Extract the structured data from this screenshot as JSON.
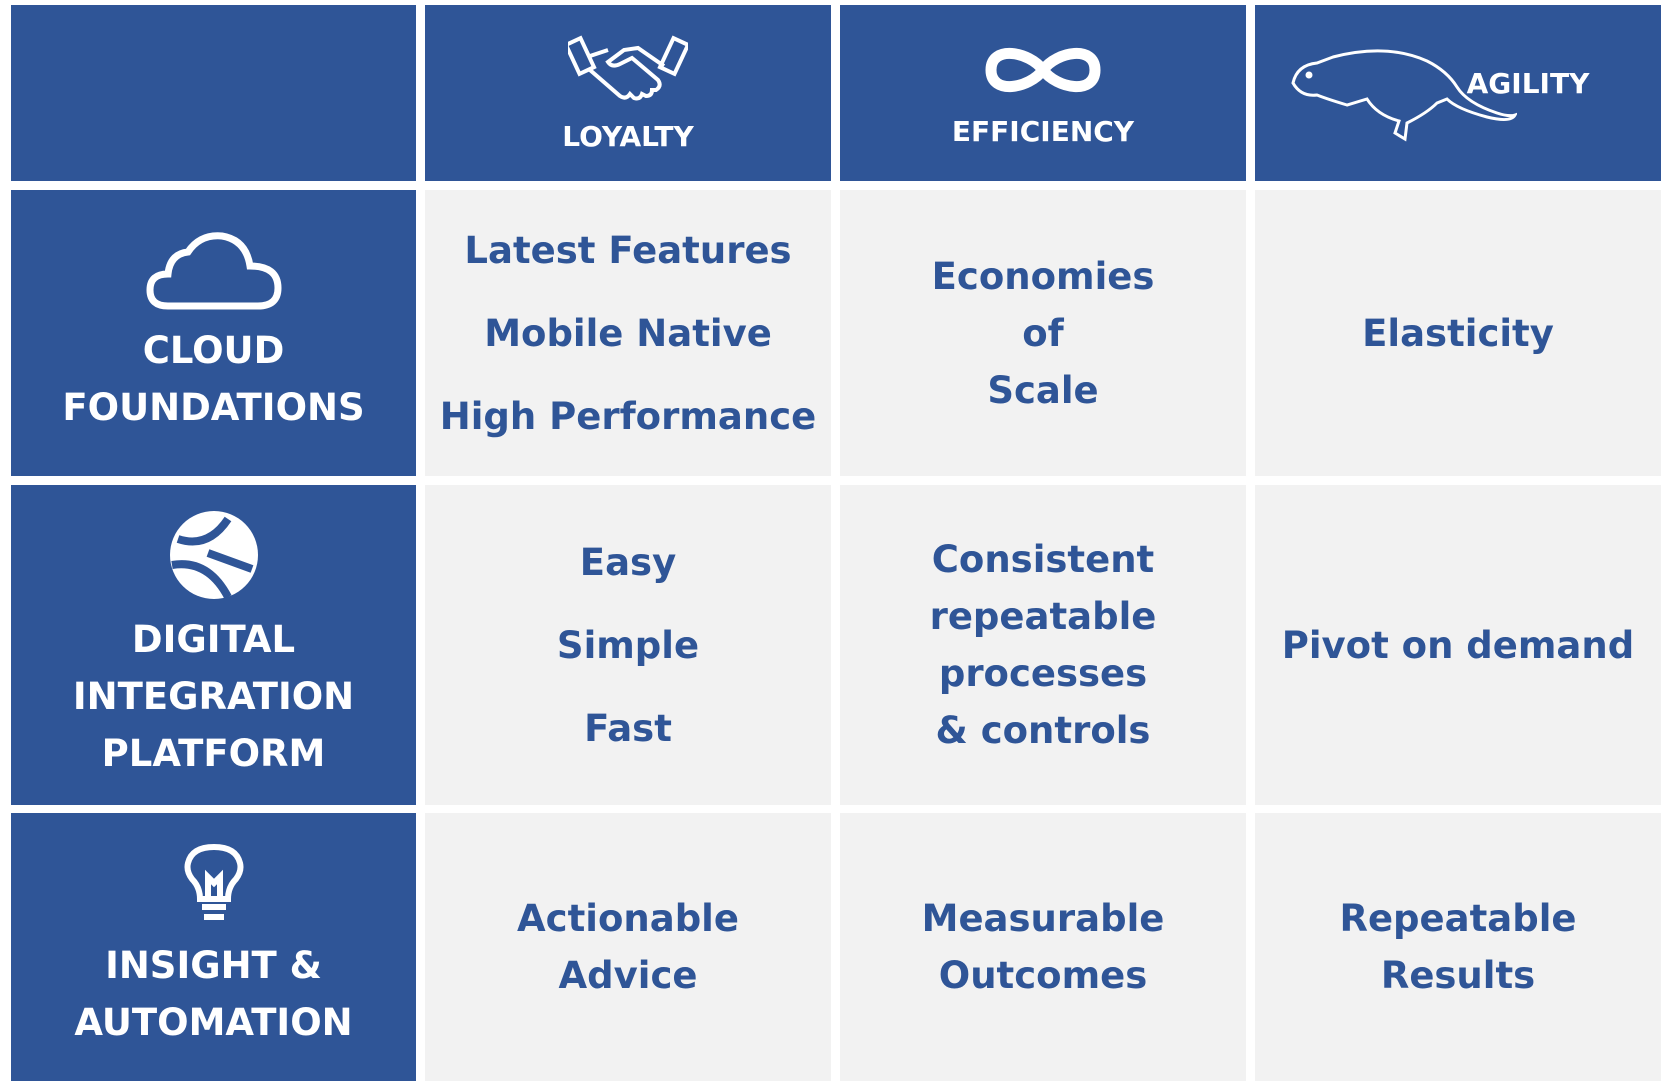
{
  "header": {
    "columns": [
      "LOYALTY",
      "EFFICIENCY",
      "AGILITY"
    ]
  },
  "rows": [
    {
      "label": [
        "CLOUD",
        "FOUNDATIONS"
      ],
      "cells": [
        [
          "Latest Features",
          "Mobile Native",
          "High Performance"
        ],
        [
          "Economies",
          "of",
          "Scale"
        ],
        [
          "Elasticity"
        ]
      ]
    },
    {
      "label": [
        "DIGITAL",
        "INTEGRATION",
        "PLATFORM"
      ],
      "cells": [
        [
          "Easy",
          "Simple",
          "Fast"
        ],
        [
          "Consistent",
          "repeatable",
          "processes",
          "& controls"
        ],
        [
          "Pivot on demand"
        ]
      ]
    },
    {
      "label": [
        "INSIGHT &",
        "AUTOMATION"
      ],
      "cells": [
        [
          "Actionable",
          "Advice"
        ],
        [
          "Measurable",
          "Outcomes"
        ],
        [
          "Repeatable",
          "Results"
        ]
      ]
    }
  ]
}
